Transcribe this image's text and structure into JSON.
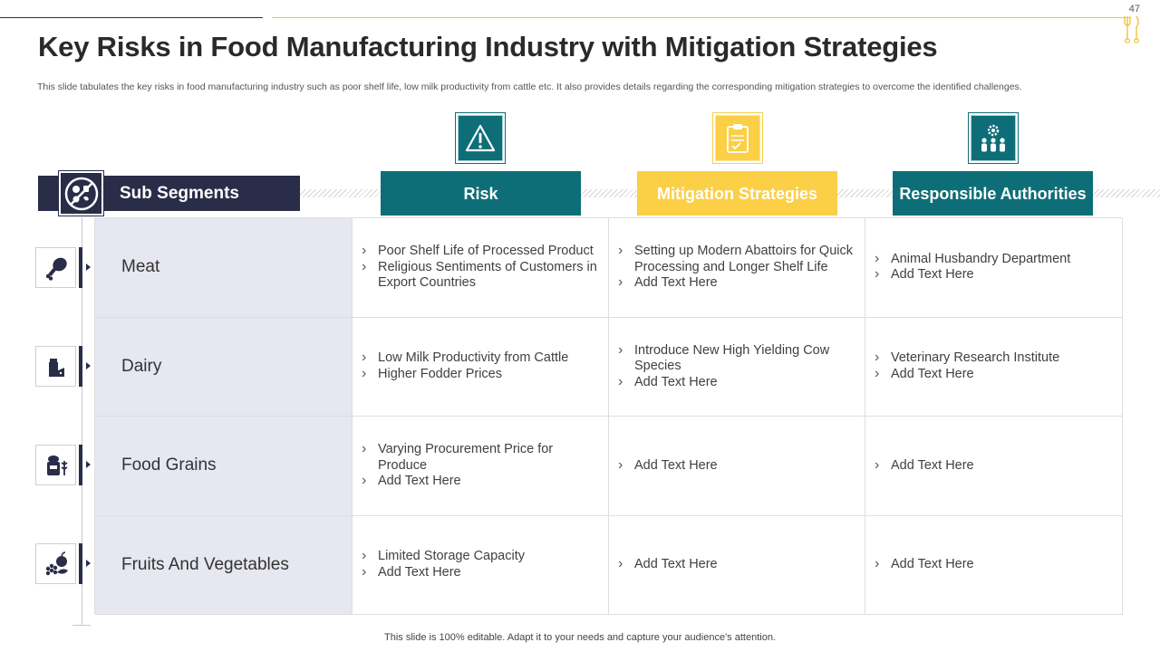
{
  "page": {
    "number": "47",
    "title": "Key Risks in Food Manufacturing Industry with Mitigation Strategies",
    "subtitle": "This slide tabulates the key risks in food manufacturing industry such as poor shelf life, low milk productivity from cattle etc.  It also provides details regarding the corresponding mitigation strategies to overcome the identified challenges.",
    "footer": "This slide is 100% editable. Adapt it to your needs and capture your audience's attention."
  },
  "colors": {
    "navy": "#2a2d48",
    "teal": "#0e6e77",
    "yellow": "#fbcf46",
    "gold_line": "#f1c33a",
    "segment_bg": "#e6e7f1"
  },
  "headers": {
    "sub_segments": "Sub Segments",
    "risk": "Risk",
    "mitigation": "Mitigation Strategies",
    "responsible": "Responsible Authorities"
  },
  "header_icons": {
    "sub_segments": "no-food-icon",
    "risk": "warning-icon",
    "mitigation": "clipboard-icon",
    "responsible": "team-gear-icon"
  },
  "rows": [
    {
      "segment": "Meat",
      "icon": "chicken-leg-icon",
      "risks": [
        "Poor Shelf Life of Processed Product",
        "Religious Sentiments of Customers in Export Countries"
      ],
      "mitigation": [
        "Setting up Modern Abattoirs for Quick Processing and Longer Shelf Life",
        "Add Text Here"
      ],
      "authorities": [
        "Animal Husbandry Department",
        "Add Text Here"
      ]
    },
    {
      "segment": "Dairy",
      "icon": "milk-cheese-icon",
      "risks": [
        "Low Milk Productivity from Cattle",
        "Higher Fodder Prices"
      ],
      "mitigation": [
        "Introduce New High Yielding Cow Species",
        "Add Text Here"
      ],
      "authorities": [
        "Veterinary Research Institute",
        "Add Text Here"
      ]
    },
    {
      "segment": "Food Grains",
      "icon": "grain-jar-icon",
      "risks": [
        "Varying Procurement Price for Produce",
        "Add Text Here"
      ],
      "mitigation": [
        "Add Text Here"
      ],
      "authorities": [
        "Add Text Here"
      ]
    },
    {
      "segment": "Fruits And Vegetables",
      "icon": "fruit-basket-icon",
      "risks": [
        "Limited Storage Capacity",
        "Add Text Here"
      ],
      "mitigation": [
        "Add Text Here"
      ],
      "authorities": [
        "Add Text Here"
      ]
    }
  ]
}
